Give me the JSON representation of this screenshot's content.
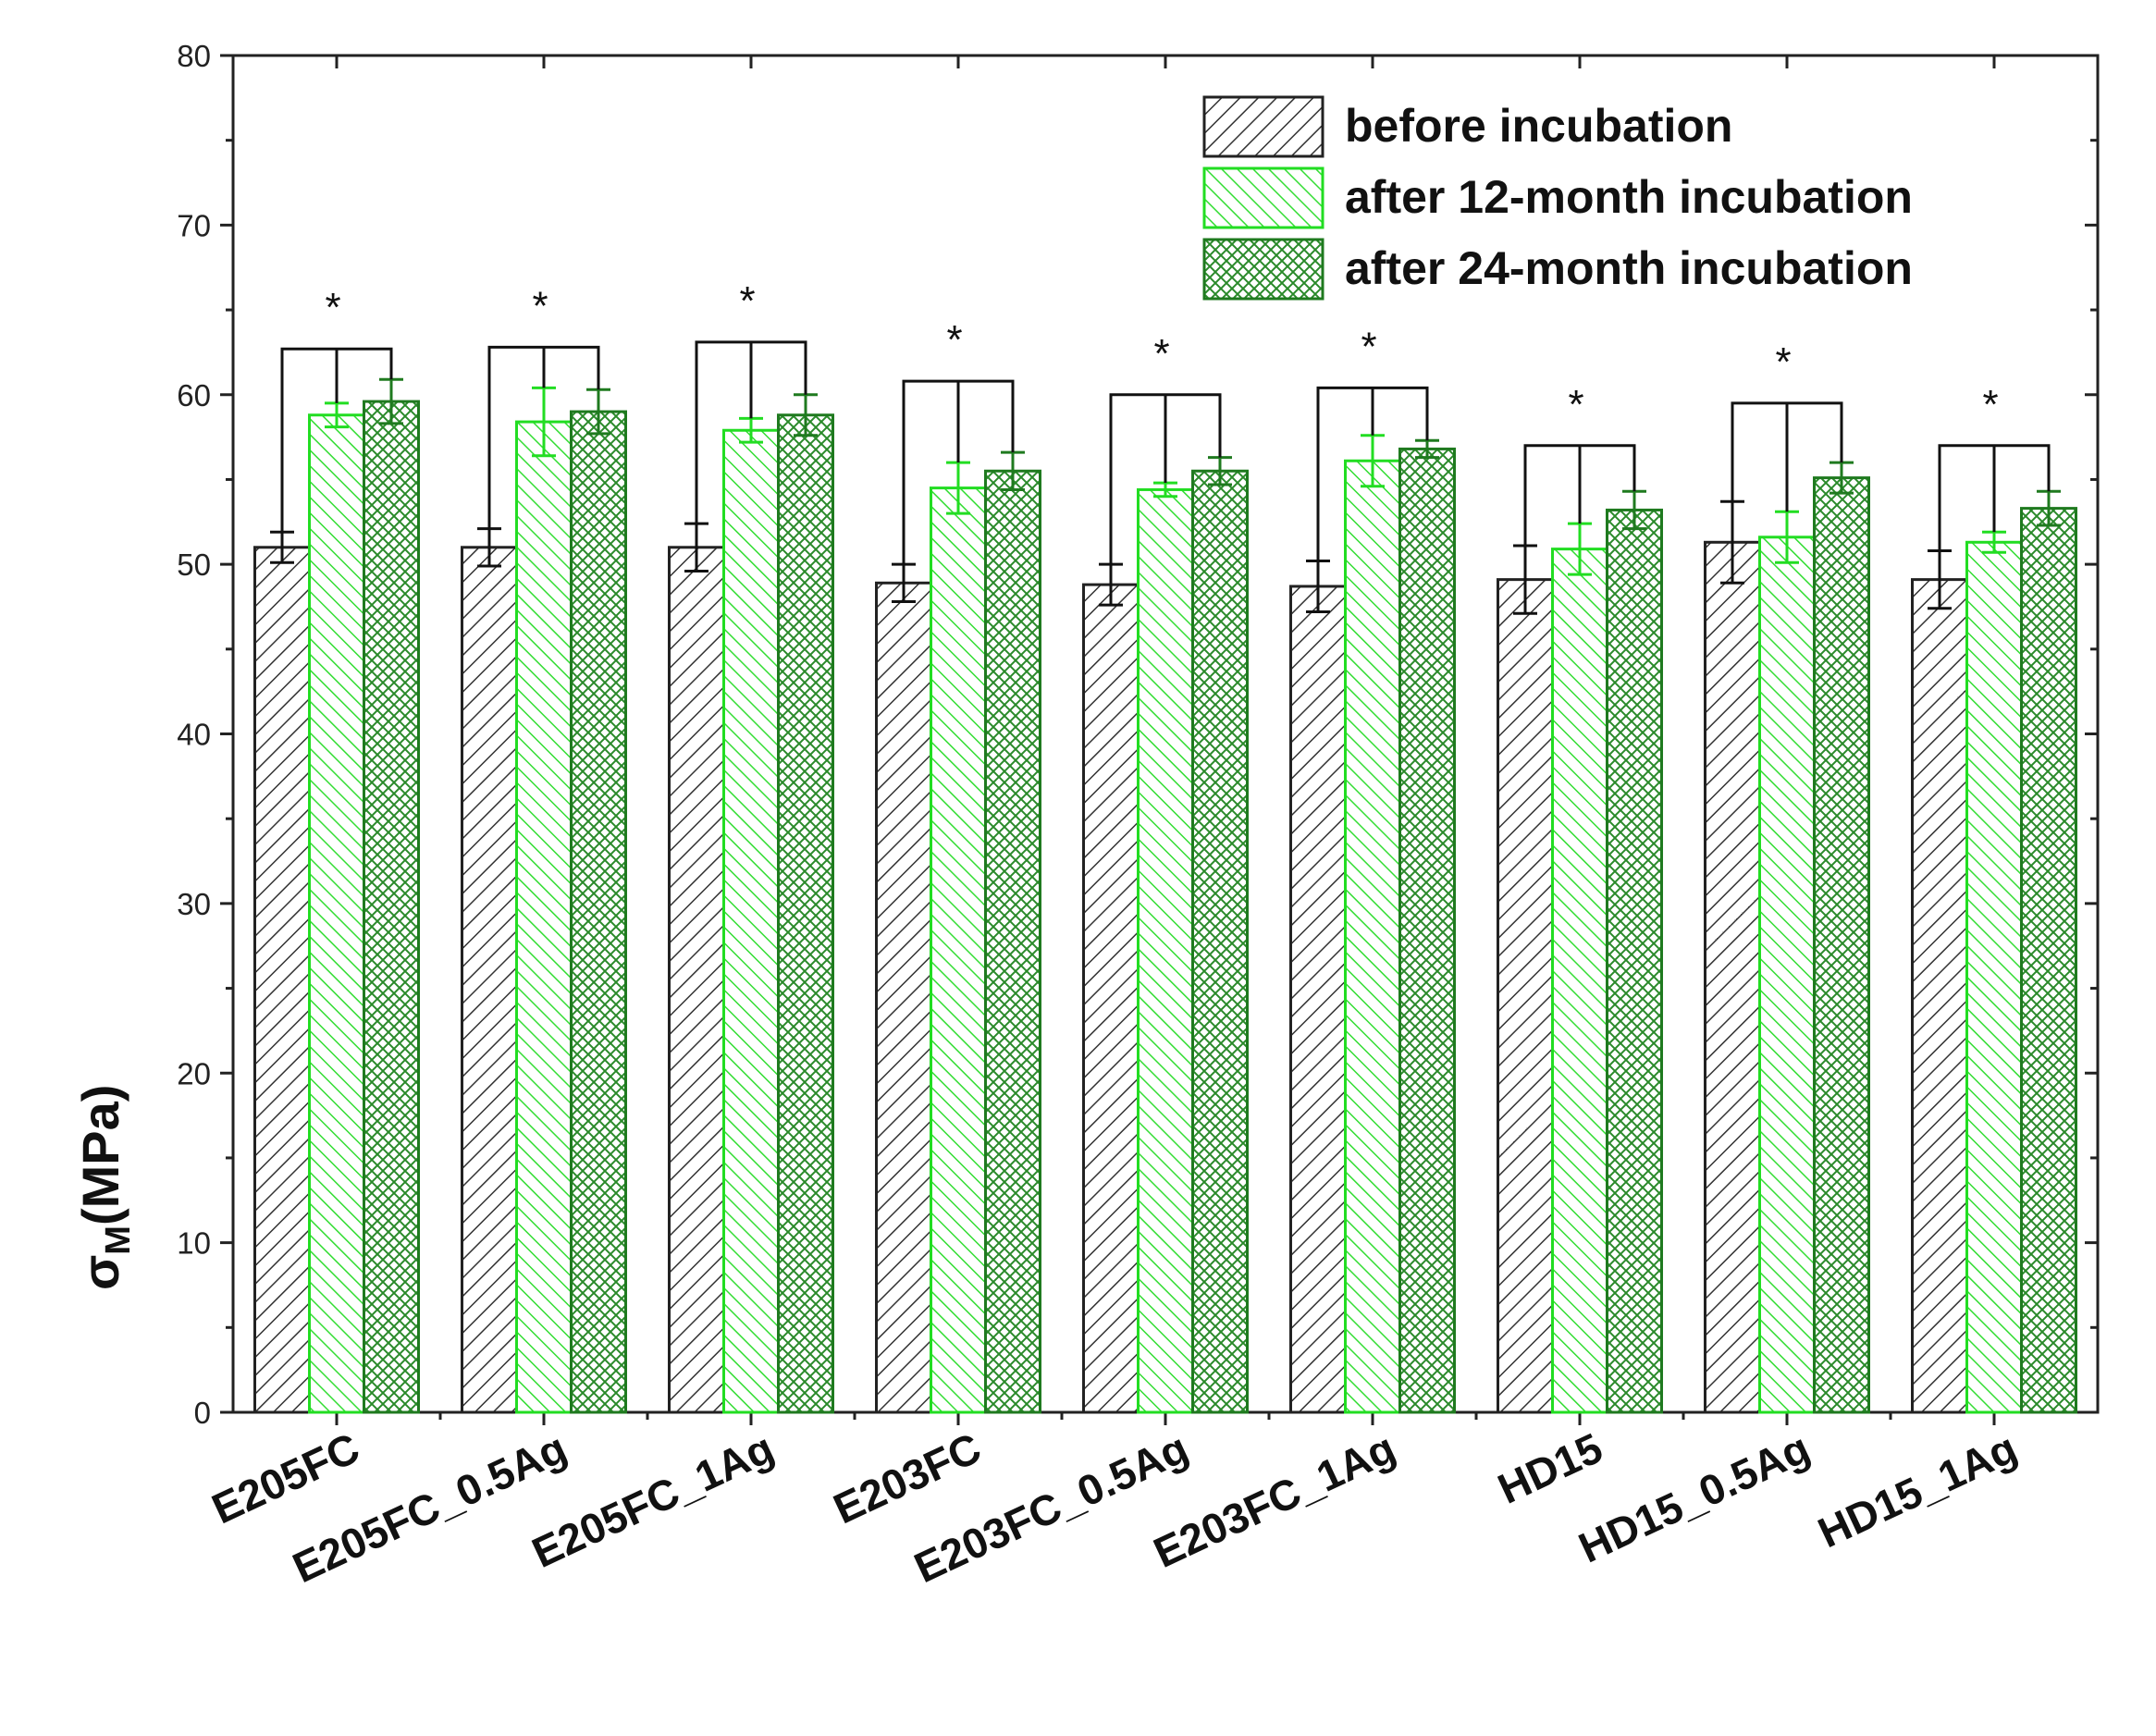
{
  "chart_data": {
    "type": "bar",
    "title": "",
    "xlabel": "",
    "ylabel": "σM(MPa)",
    "ylabel_main": "σ",
    "ylabel_sub": "M",
    "ylabel_unit": "(MPa)",
    "ylim": [
      0,
      80
    ],
    "yticks": [
      0,
      10,
      20,
      30,
      40,
      50,
      60,
      70,
      80
    ],
    "grid": false,
    "legend_position": "top-right",
    "categories": [
      "E205FC",
      "E205FC_0.5Ag",
      "E205FC_1Ag",
      "E203FC",
      "E203FC_0.5Ag",
      "E203FC_1Ag",
      "HD15",
      "HD15_0.5Ag",
      "HD15_1Ag"
    ],
    "series": [
      {
        "name": "before incubation",
        "values": [
          51.0,
          51.0,
          51.0,
          48.9,
          48.8,
          48.7,
          49.1,
          51.3,
          49.1
        ],
        "errors": [
          0.9,
          1.1,
          1.4,
          1.1,
          1.2,
          1.5,
          2.0,
          2.4,
          1.7
        ],
        "color": "#222222",
        "pattern": "diagonal-up"
      },
      {
        "name": "after 12-month incubation",
        "values": [
          58.8,
          58.4,
          57.9,
          54.5,
          54.4,
          56.1,
          50.9,
          51.6,
          51.3
        ],
        "errors": [
          0.7,
          2.0,
          0.7,
          1.5,
          0.4,
          1.5,
          1.5,
          1.5,
          0.6
        ],
        "color": "#22dd22",
        "pattern": "diagonal-down"
      },
      {
        "name": "after 24-month incubation",
        "values": [
          59.6,
          59.0,
          58.8,
          55.5,
          55.5,
          56.8,
          53.2,
          55.1,
          53.3
        ],
        "errors": [
          1.3,
          1.3,
          1.2,
          1.1,
          0.8,
          0.5,
          1.1,
          0.9,
          1.0
        ],
        "color": "#1f7a1f",
        "pattern": "crosshatch"
      }
    ],
    "significance_marker": "*",
    "significance_bracket_tops": [
      62.7,
      62.8,
      63.1,
      60.8,
      60.0,
      60.4,
      57.0,
      59.5,
      57.0
    ]
  }
}
